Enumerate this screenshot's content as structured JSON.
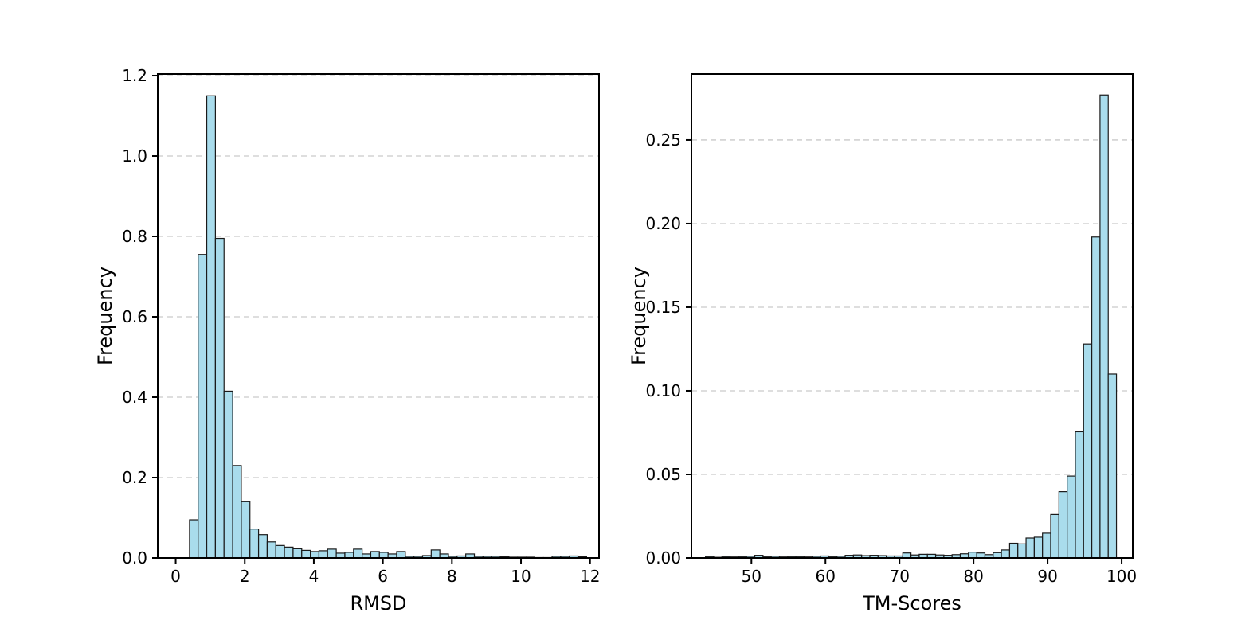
{
  "page": {
    "background": "#ffffff",
    "description": "Figure with two histograms: RMSD distribution and TM-Scores distribution"
  },
  "chart_data": [
    {
      "type": "bar",
      "subtype": "histogram",
      "title": "",
      "xlabel": "RMSD",
      "ylabel": "Frequency",
      "bin_start": 0.4,
      "bin_width": 0.25,
      "values": [
        0.095,
        0.755,
        1.15,
        0.795,
        0.415,
        0.23,
        0.14,
        0.072,
        0.058,
        0.04,
        0.031,
        0.027,
        0.023,
        0.019,
        0.016,
        0.018,
        0.022,
        0.012,
        0.014,
        0.022,
        0.01,
        0.016,
        0.014,
        0.01,
        0.016,
        0.004,
        0.004,
        0.006,
        0.02,
        0.01,
        0.004,
        0.005,
        0.01,
        0.004,
        0.004,
        0.004,
        0.003,
        0.002,
        0.002,
        0.002,
        0.001,
        0.001,
        0.004,
        0.004,
        0.005,
        0.003
      ],
      "xlim": [
        -0.52,
        12.26
      ],
      "ylim": [
        0,
        1.204
      ],
      "xticks": [
        0,
        2,
        4,
        6,
        8,
        10,
        12
      ],
      "xtick_labels": [
        "0",
        "2",
        "4",
        "6",
        "8",
        "10",
        "12"
      ],
      "yticks": [
        0.0,
        0.2,
        0.4,
        0.6,
        0.8,
        1.0,
        1.2
      ],
      "ytick_labels": [
        "0.0",
        "0.2",
        "0.4",
        "0.6",
        "0.8",
        "1.0",
        "1.2"
      ],
      "grid": "horizontal-dashed",
      "legend": "none",
      "bar_fill": "#a9dcec",
      "bar_edge": "#1a1a1a",
      "grid_color": "#c9c9c9",
      "spine_color": "#000000"
    },
    {
      "type": "bar",
      "subtype": "histogram",
      "title": "",
      "xlabel": "TM-Scores",
      "ylabel": "Frequency",
      "bin_start": 43.8,
      "bin_width": 1.11,
      "values": [
        0.0008,
        0.0004,
        0.0008,
        0.0006,
        0.0008,
        0.001,
        0.0016,
        0.0008,
        0.001,
        0.0006,
        0.0008,
        0.0008,
        0.0006,
        0.001,
        0.0012,
        0.0008,
        0.001,
        0.0016,
        0.0018,
        0.0014,
        0.0016,
        0.0014,
        0.0012,
        0.0012,
        0.003,
        0.0018,
        0.0022,
        0.0022,
        0.0018,
        0.0016,
        0.002,
        0.0025,
        0.0035,
        0.003,
        0.002,
        0.0032,
        0.0048,
        0.0088,
        0.0084,
        0.0119,
        0.0124,
        0.0148,
        0.026,
        0.0397,
        0.049,
        0.0755,
        0.128,
        0.192,
        0.277,
        0.11
      ],
      "xlim": [
        41.9,
        101.5
      ],
      "ylim": [
        0,
        0.2895
      ],
      "xticks": [
        50,
        60,
        70,
        80,
        90,
        100
      ],
      "xtick_labels": [
        "50",
        "60",
        "70",
        "80",
        "90",
        "100"
      ],
      "yticks": [
        0.0,
        0.05,
        0.1,
        0.15,
        0.2,
        0.25
      ],
      "ytick_labels": [
        "0.00",
        "0.05",
        "0.10",
        "0.15",
        "0.20",
        "0.25"
      ],
      "grid": "horizontal-dashed",
      "legend": "none",
      "bar_fill": "#a9dcec",
      "bar_edge": "#1a1a1a",
      "grid_color": "#c9c9c9",
      "spine_color": "#000000"
    }
  ]
}
